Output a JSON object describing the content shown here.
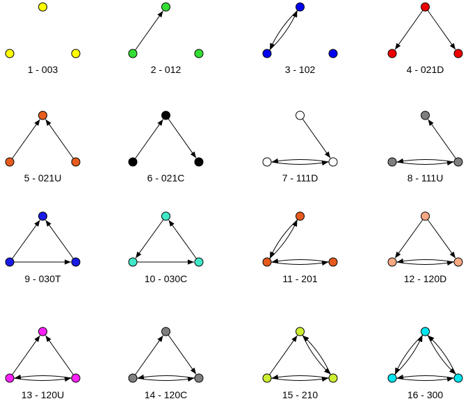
{
  "diagram": {
    "type": "triad-census",
    "node_color_default_stroke": "#000000",
    "panels": [
      {
        "label": "1 - 003",
        "color": "#ffff00",
        "edges": []
      },
      {
        "label": "2 - 012",
        "color": "#33dd33",
        "edges": [
          [
            "L",
            "T"
          ]
        ]
      },
      {
        "label": "3 - 102",
        "color": "#0000ee",
        "edges": [
          [
            "L",
            "T"
          ],
          [
            "T",
            "L"
          ]
        ]
      },
      {
        "label": "4 - 021D",
        "color": "#ee0000",
        "edges": [
          [
            "T",
            "L"
          ],
          [
            "T",
            "R"
          ]
        ]
      },
      {
        "label": "5 - 021U",
        "color": "#e65c1e",
        "edges": [
          [
            "L",
            "T"
          ],
          [
            "R",
            "T"
          ]
        ]
      },
      {
        "label": "6 - 021C",
        "color": "#000000",
        "edges": [
          [
            "L",
            "T"
          ],
          [
            "T",
            "R"
          ]
        ]
      },
      {
        "label": "7 - 111D",
        "color": "#ffffff",
        "edges": [
          [
            "T",
            "R"
          ],
          [
            "L",
            "R"
          ],
          [
            "R",
            "L"
          ]
        ]
      },
      {
        "label": "8 - 111U",
        "color": "#7f7f7f",
        "edges": [
          [
            "R",
            "T"
          ],
          [
            "L",
            "R"
          ],
          [
            "R",
            "L"
          ]
        ]
      },
      {
        "label": "9 - 030T",
        "color": "#1a1ae6",
        "edges": [
          [
            "L",
            "T"
          ],
          [
            "R",
            "T"
          ],
          [
            "L",
            "R"
          ]
        ]
      },
      {
        "label": "10 - 030C",
        "color": "#40e8c8",
        "edges": [
          [
            "T",
            "L"
          ],
          [
            "L",
            "R"
          ],
          [
            "R",
            "T"
          ]
        ]
      },
      {
        "label": "11 - 201",
        "color": "#e65a1e",
        "edges": [
          [
            "L",
            "T"
          ],
          [
            "T",
            "L"
          ],
          [
            "L",
            "R"
          ],
          [
            "R",
            "L"
          ]
        ]
      },
      {
        "label": "12 - 120D",
        "color": "#f5a882",
        "edges": [
          [
            "T",
            "L"
          ],
          [
            "T",
            "R"
          ],
          [
            "L",
            "R"
          ],
          [
            "R",
            "L"
          ]
        ]
      },
      {
        "label": "13 - 120U",
        "color": "#ff22ff",
        "edges": [
          [
            "L",
            "T"
          ],
          [
            "R",
            "T"
          ],
          [
            "L",
            "R"
          ],
          [
            "R",
            "L"
          ]
        ]
      },
      {
        "label": "14 - 120C",
        "color": "#7f7f7f",
        "edges": [
          [
            "L",
            "T"
          ],
          [
            "T",
            "R"
          ],
          [
            "L",
            "R"
          ],
          [
            "R",
            "L"
          ]
        ]
      },
      {
        "label": "15 - 210",
        "color": "#ccee33",
        "edges": [
          [
            "L",
            "T"
          ],
          [
            "R",
            "T"
          ],
          [
            "T",
            "R"
          ],
          [
            "L",
            "R"
          ],
          [
            "R",
            "L"
          ]
        ]
      },
      {
        "label": "16 - 300",
        "color": "#00e5ee",
        "edges": [
          [
            "L",
            "T"
          ],
          [
            "T",
            "L"
          ],
          [
            "R",
            "T"
          ],
          [
            "T",
            "R"
          ],
          [
            "L",
            "R"
          ],
          [
            "R",
            "L"
          ]
        ]
      }
    ]
  }
}
